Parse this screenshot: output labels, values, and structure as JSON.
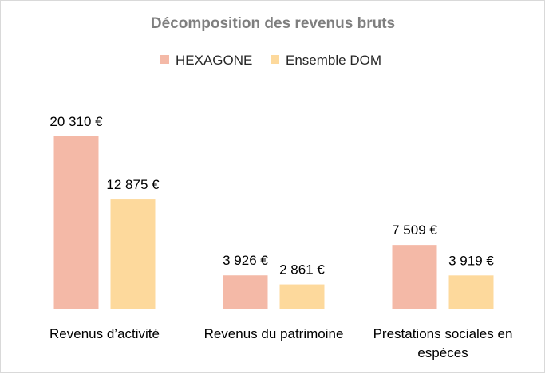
{
  "chart_data": {
    "type": "bar",
    "title": "Décomposition des revenus bruts",
    "categories": [
      [
        "Revenus d’activité"
      ],
      [
        "Revenus du patrimoine"
      ],
      [
        "Prestations sociales en",
        "espèces"
      ]
    ],
    "series": [
      {
        "name": "HEXAGONE",
        "color": "#f4b9a7",
        "values": [
          20310,
          3926,
          7509
        ],
        "labels": [
          "20 310 €",
          "3 926 €",
          "7 509 €"
        ]
      },
      {
        "name": "Ensemble DOM",
        "color": "#fdd99c",
        "values": [
          12875,
          2861,
          3919
        ],
        "labels": [
          "12 875 €",
          "2 861 €",
          "3 919 €"
        ]
      }
    ],
    "ylim": [
      0,
      20310
    ],
    "legend_position": "top-center",
    "grid": false,
    "axis_color": "#d9d9d9"
  }
}
